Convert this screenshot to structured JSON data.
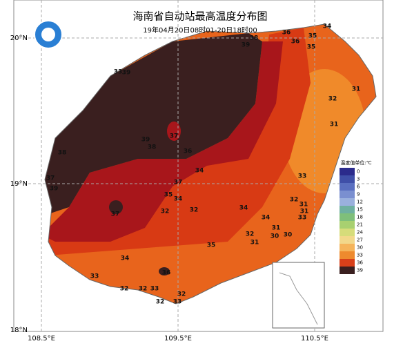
{
  "title": "海南省自动站最高温度分布图",
  "subtitle": "19年04月20日08时01-20日18时00",
  "lat_labels": [
    "20°N",
    "19°N",
    "18°N"
  ],
  "lon_labels": [
    "108.5°E",
    "109.5°E",
    "110.5°E"
  ],
  "legend": {
    "title": "温度值单位:℃",
    "ticks": [
      0,
      3,
      6,
      9,
      12,
      15,
      18,
      21,
      24,
      27,
      30,
      33,
      36,
      39
    ],
    "colors": [
      "#2b2b8c",
      "#3f4fa8",
      "#5a6fc0",
      "#7a8fd0",
      "#9ab0dd",
      "#6fb0a0",
      "#7fbf7a",
      "#a8d070",
      "#d6dc7a",
      "#f2d88a",
      "#f5b45a",
      "#ee8a2e",
      "#d8401a",
      "#3a1f1f"
    ]
  },
  "contour_labels": [
    38,
    39,
    36,
    35,
    34,
    36,
    35,
    33,
    39,
    31,
    32,
    31,
    37,
    39,
    38,
    36,
    38,
    34,
    37,
    39,
    37,
    33,
    35,
    34,
    32,
    31,
    31,
    33,
    32,
    32,
    34,
    37,
    34,
    31,
    32,
    30,
    30,
    31,
    35,
    34,
    36,
    33,
    32,
    32,
    33,
    32,
    32,
    33
  ]
}
